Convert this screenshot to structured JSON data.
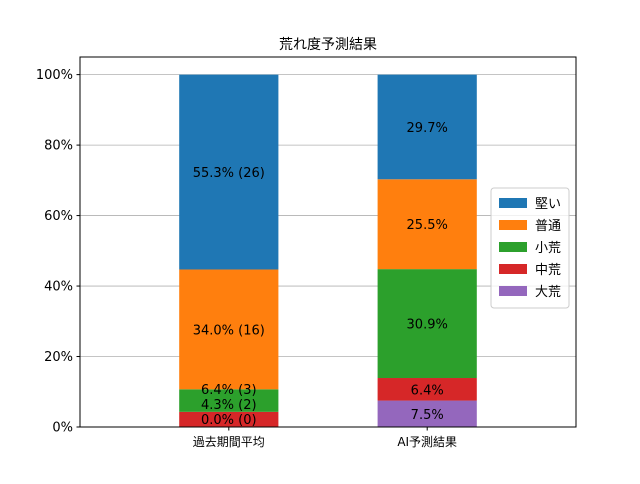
{
  "chart_data": {
    "type": "bar",
    "stacked": true,
    "normalized": true,
    "title": "荒れ度予測結果",
    "xlabel": "",
    "ylabel": "",
    "categories": [
      "過去期間平均",
      "AI予測結果"
    ],
    "ylim": [
      0,
      105
    ],
    "yticks": [
      0,
      20,
      40,
      60,
      80,
      100
    ],
    "ytick_labels": [
      "0%",
      "20%",
      "40%",
      "60%",
      "80%",
      "100%"
    ],
    "grid": "horizontal",
    "legend_placement": "center-right",
    "series": [
      {
        "name": "大荒",
        "color": "#9467bd",
        "values": [
          0.0,
          7.5
        ],
        "labels": [
          "0.0% (0)",
          "7.5%"
        ]
      },
      {
        "name": "中荒",
        "color": "#d62728",
        "values": [
          4.3,
          6.4
        ],
        "labels": [
          "4.3% (2)",
          "6.4%"
        ]
      },
      {
        "name": "小荒",
        "color": "#2ca02c",
        "values": [
          6.4,
          30.9
        ],
        "labels": [
          "6.4% (3)",
          "30.9%"
        ]
      },
      {
        "name": "普通",
        "color": "#ff7f0e",
        "values": [
          34.0,
          25.5
        ],
        "labels": [
          "34.0% (16)",
          "25.5%"
        ]
      },
      {
        "name": "堅い",
        "color": "#1f77b4",
        "values": [
          55.3,
          29.7
        ],
        "labels": [
          "55.3% (26)",
          "29.7%"
        ]
      }
    ],
    "legend_order": [
      "堅い",
      "普通",
      "小荒",
      "中荒",
      "大荒"
    ]
  }
}
